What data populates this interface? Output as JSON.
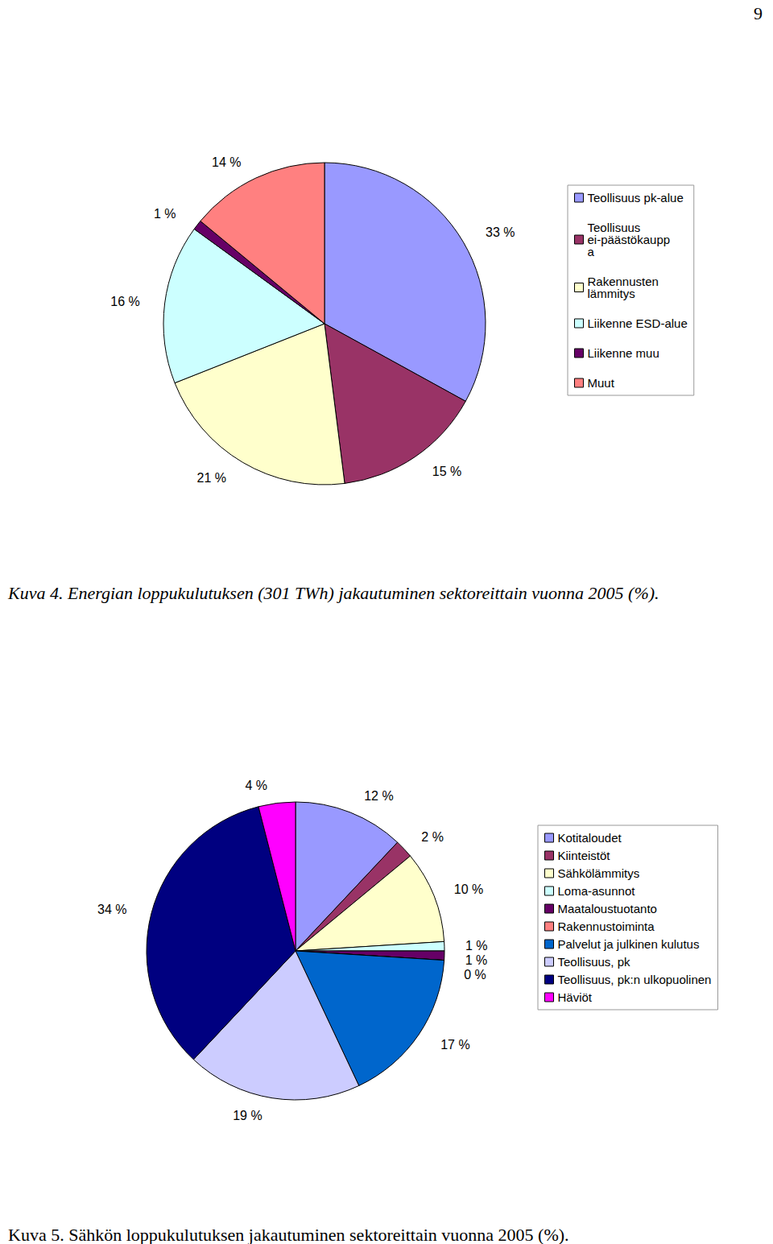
{
  "page_number": "9",
  "chart_data": [
    {
      "type": "pie",
      "title": "Kuva 4. Energian loppukulutuksen (301 TWh) jakautuminen sektoreittain vuonna 2005 (%).",
      "categories": [
        "Teollisuus pk-alue",
        "Teollisuus ei-päästökauppa",
        "Rakennusten lämmitys",
        "Liikenne ESD-alue",
        "Liikenne muu",
        "Muut"
      ],
      "values": [
        33,
        15,
        21,
        16,
        1,
        14
      ],
      "value_labels": [
        "33 %",
        "15 %",
        "21 %",
        "16 %",
        "1 %",
        "14 %"
      ],
      "colors": [
        "#9999ff",
        "#993366",
        "#ffffcc",
        "#ccffff",
        "#660066",
        "#ff8080"
      ],
      "legend": "right",
      "data_labels": true
    },
    {
      "type": "pie",
      "title": "Kuva 5. Sähkön loppukulutuksen jakautuminen sektoreittain vuonna 2005 (%).",
      "categories": [
        "Kotitaloudet",
        "Kiinteistöt",
        "Sähkölämmitys",
        "Loma-asunnot",
        "Maataloustuotanto",
        "Rakennustoiminta",
        "Palvelut ja julkinen kulutus",
        "Teollisuus, pk",
        "Teollisuus, pk:n ulkopuolinen",
        "Häviöt"
      ],
      "values": [
        12,
        2,
        10,
        1,
        1,
        0,
        17,
        19,
        34,
        4
      ],
      "value_labels": [
        "12 %",
        "2 %",
        "10 %",
        "1 %",
        "1 %",
        "0 %",
        "17 %",
        "19 %",
        "34 %",
        "4 %"
      ],
      "colors": [
        "#9999ff",
        "#993366",
        "#ffffcc",
        "#ccffff",
        "#660066",
        "#ff8080",
        "#0066cc",
        "#ccccff",
        "#000080",
        "#ff00ff"
      ],
      "legend": "right",
      "data_labels": true
    }
  ]
}
